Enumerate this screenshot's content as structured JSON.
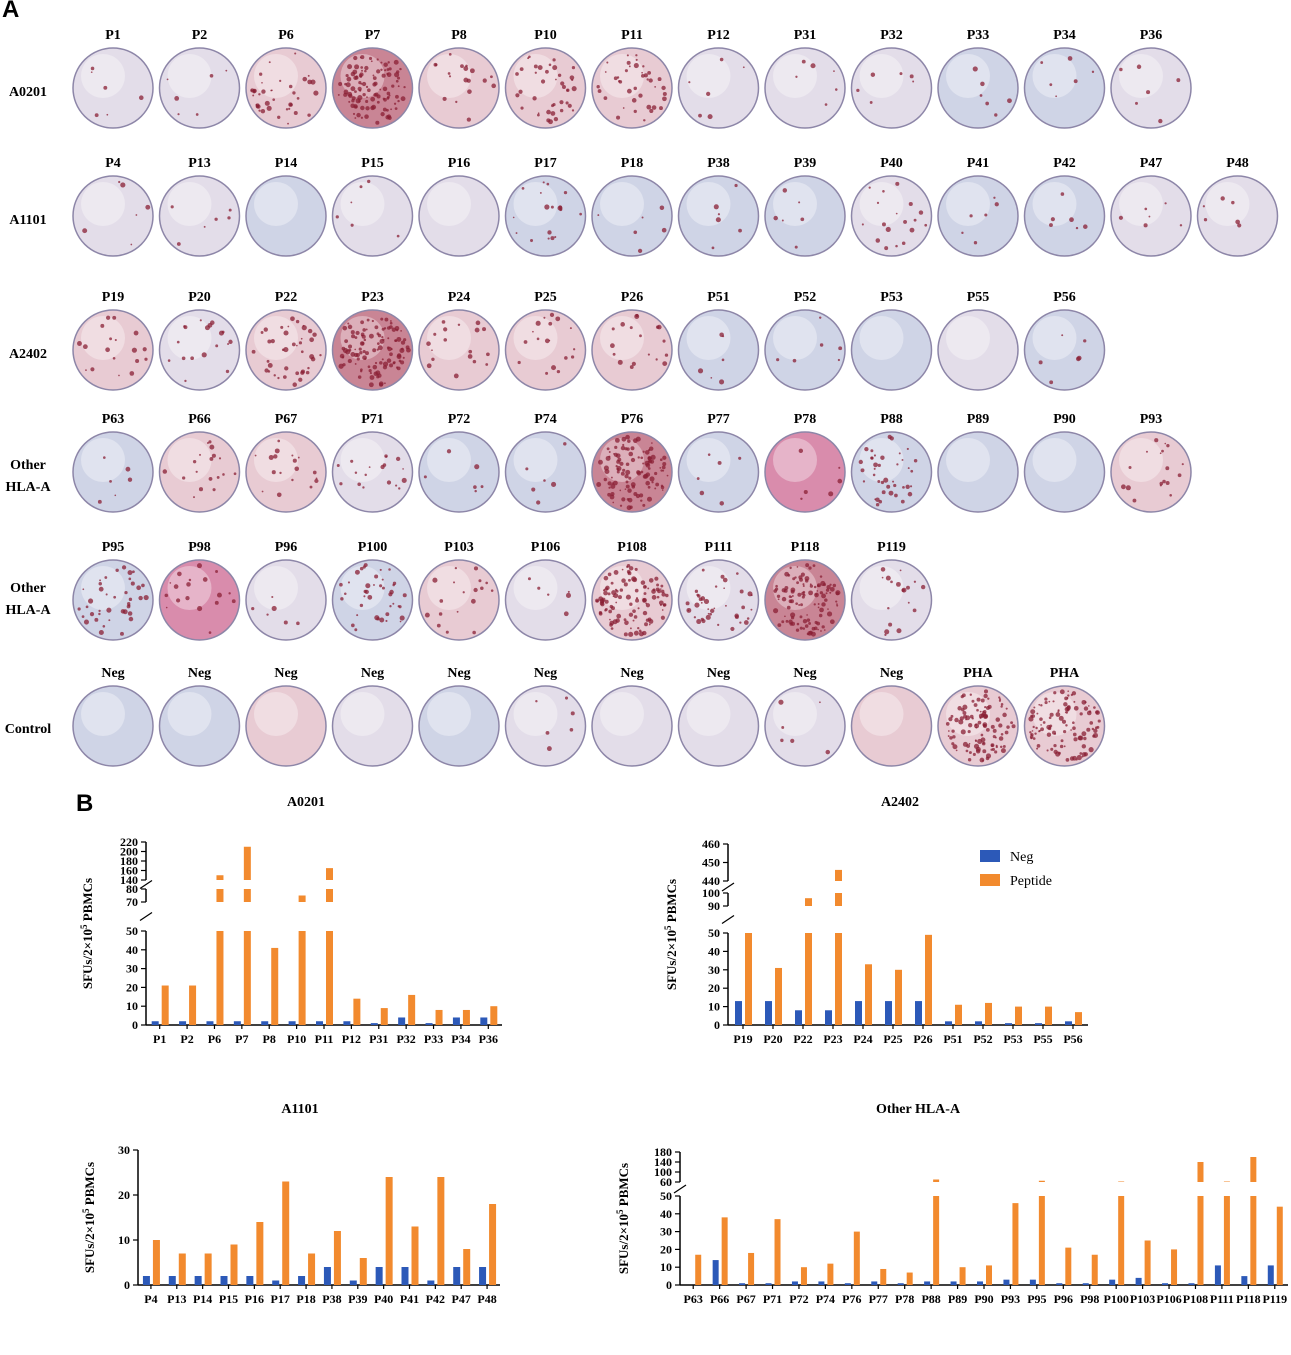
{
  "panel_a": {
    "letter": "A",
    "rows": [
      {
        "label_lines": [
          "A0201"
        ],
        "wells": [
          {
            "label": "P1",
            "tone": "pale",
            "spots": "few"
          },
          {
            "label": "P2",
            "tone": "pale",
            "spots": "few"
          },
          {
            "label": "P6",
            "tone": "pink",
            "spots": "many"
          },
          {
            "label": "P7",
            "tone": "red",
            "spots": "dense"
          },
          {
            "label": "P8",
            "tone": "pink",
            "spots": "some"
          },
          {
            "label": "P10",
            "tone": "pink",
            "spots": "many"
          },
          {
            "label": "P11",
            "tone": "pink",
            "spots": "many"
          },
          {
            "label": "P12",
            "tone": "pale",
            "spots": "few"
          },
          {
            "label": "P31",
            "tone": "pale",
            "spots": "few"
          },
          {
            "label": "P32",
            "tone": "pale",
            "spots": "few"
          },
          {
            "label": "P33",
            "tone": "blue",
            "spots": "few"
          },
          {
            "label": "P34",
            "tone": "blue",
            "spots": "few"
          },
          {
            "label": "P36",
            "tone": "pale",
            "spots": "few"
          }
        ]
      },
      {
        "label_lines": [
          "A1101"
        ],
        "wells": [
          {
            "label": "P4",
            "tone": "pale",
            "spots": "few"
          },
          {
            "label": "P13",
            "tone": "pale",
            "spots": "few"
          },
          {
            "label": "P14",
            "tone": "blue",
            "spots": "none"
          },
          {
            "label": "P15",
            "tone": "pale",
            "spots": "few"
          },
          {
            "label": "P16",
            "tone": "pale",
            "spots": "none"
          },
          {
            "label": "P17",
            "tone": "blue",
            "spots": "some"
          },
          {
            "label": "P18",
            "tone": "blue",
            "spots": "few"
          },
          {
            "label": "P38",
            "tone": "blue",
            "spots": "few"
          },
          {
            "label": "P39",
            "tone": "blue",
            "spots": "few"
          },
          {
            "label": "P40",
            "tone": "pale",
            "spots": "some"
          },
          {
            "label": "P41",
            "tone": "blue",
            "spots": "few"
          },
          {
            "label": "P42",
            "tone": "blue",
            "spots": "few"
          },
          {
            "label": "P47",
            "tone": "pale",
            "spots": "few"
          },
          {
            "label": "P48",
            "tone": "pale",
            "spots": "few"
          }
        ]
      },
      {
        "label_lines": [
          "A2402"
        ],
        "wells": [
          {
            "label": "P19",
            "tone": "pink",
            "spots": "some"
          },
          {
            "label": "P20",
            "tone": "pale",
            "spots": "some"
          },
          {
            "label": "P22",
            "tone": "pink",
            "spots": "many"
          },
          {
            "label": "P23",
            "tone": "red",
            "spots": "dense"
          },
          {
            "label": "P24",
            "tone": "pink",
            "spots": "some"
          },
          {
            "label": "P25",
            "tone": "pink",
            "spots": "some"
          },
          {
            "label": "P26",
            "tone": "pink",
            "spots": "some"
          },
          {
            "label": "P51",
            "tone": "blue",
            "spots": "few"
          },
          {
            "label": "P52",
            "tone": "blue",
            "spots": "few"
          },
          {
            "label": "P53",
            "tone": "blue",
            "spots": "none"
          },
          {
            "label": "P55",
            "tone": "pale",
            "spots": "none"
          },
          {
            "label": "P56",
            "tone": "blue",
            "spots": "few"
          }
        ]
      },
      {
        "label_lines": [
          "Other",
          "HLA-A"
        ],
        "wells": [
          {
            "label": "P63",
            "tone": "blue",
            "spots": "few"
          },
          {
            "label": "P66",
            "tone": "pink",
            "spots": "some"
          },
          {
            "label": "P67",
            "tone": "pink",
            "spots": "some"
          },
          {
            "label": "P71",
            "tone": "pale",
            "spots": "some"
          },
          {
            "label": "P72",
            "tone": "blue",
            "spots": "few"
          },
          {
            "label": "P74",
            "tone": "blue",
            "spots": "few"
          },
          {
            "label": "P76",
            "tone": "red",
            "spots": "dense"
          },
          {
            "label": "P77",
            "tone": "blue",
            "spots": "few"
          },
          {
            "label": "P78",
            "tone": "magenta",
            "spots": "few"
          },
          {
            "label": "P88",
            "tone": "blue",
            "spots": "many"
          },
          {
            "label": "P89",
            "tone": "blue",
            "spots": "none"
          },
          {
            "label": "P90",
            "tone": "blue",
            "spots": "none"
          },
          {
            "label": "P93",
            "tone": "pink",
            "spots": "some"
          }
        ]
      },
      {
        "label_lines": [
          "Other",
          "HLA-A"
        ],
        "wells": [
          {
            "label": "P95",
            "tone": "blue",
            "spots": "many"
          },
          {
            "label": "P98",
            "tone": "magenta",
            "spots": "some"
          },
          {
            "label": "P96",
            "tone": "pale",
            "spots": "few"
          },
          {
            "label": "P100",
            "tone": "blue",
            "spots": "many"
          },
          {
            "label": "P103",
            "tone": "pink",
            "spots": "some"
          },
          {
            "label": "P106",
            "tone": "pale",
            "spots": "few"
          },
          {
            "label": "P108",
            "tone": "pink",
            "spots": "dense"
          },
          {
            "label": "P111",
            "tone": "pale",
            "spots": "many"
          },
          {
            "label": "P118",
            "tone": "red",
            "spots": "dense"
          },
          {
            "label": "P119",
            "tone": "pale",
            "spots": "some"
          }
        ]
      },
      {
        "label_lines": [
          "Control"
        ],
        "wells": [
          {
            "label": "Neg",
            "tone": "blue",
            "spots": "none"
          },
          {
            "label": "Neg",
            "tone": "blue",
            "spots": "none"
          },
          {
            "label": "Neg",
            "tone": "pink",
            "spots": "none"
          },
          {
            "label": "Neg",
            "tone": "pale",
            "spots": "none"
          },
          {
            "label": "Neg",
            "tone": "blue",
            "spots": "none"
          },
          {
            "label": "Neg",
            "tone": "pale",
            "spots": "few"
          },
          {
            "label": "Neg",
            "tone": "pale",
            "spots": "none"
          },
          {
            "label": "Neg",
            "tone": "pale",
            "spots": "none"
          },
          {
            "label": "Neg",
            "tone": "pale",
            "spots": "few"
          },
          {
            "label": "Neg",
            "tone": "pink",
            "spots": "none"
          },
          {
            "label": "PHA",
            "tone": "pink",
            "spots": "dense"
          },
          {
            "label": "PHA",
            "tone": "pink",
            "spots": "dense"
          }
        ]
      }
    ]
  },
  "panel_b": {
    "letter": "B"
  },
  "colors": {
    "neg": "#2c59b8",
    "peptide": "#f28a2e",
    "well_pale": "#e3dde9",
    "well_blue": "#cfd4e6",
    "well_pink": "#e8cbd3",
    "well_red": "#c98595",
    "well_magenta": "#d98cac",
    "spot": "#8a1f34"
  },
  "legend": {
    "neg_label": "Neg",
    "peptide_label": "Peptide"
  },
  "chart_data": [
    {
      "type": "bar",
      "title": "A0201",
      "ylabel": "SFUs/2×10^5 PBMCs",
      "categories": [
        "P1",
        "P2",
        "P6",
        "P7",
        "P8",
        "P10",
        "P11",
        "P12",
        "P31",
        "P32",
        "P33",
        "P34",
        "P36"
      ],
      "series": [
        {
          "name": "Neg",
          "values": [
            2,
            2,
            2,
            2,
            2,
            2,
            2,
            2,
            1,
            4,
            1,
            4,
            4
          ]
        },
        {
          "name": "Peptide",
          "values": [
            21,
            21,
            150,
            210,
            41,
            75,
            165,
            14,
            9,
            16,
            8,
            8,
            10
          ]
        }
      ],
      "axis_segments": [
        {
          "range": [
            0,
            50
          ],
          "ticks": [
            0,
            10,
            20,
            30,
            40,
            50
          ]
        },
        {
          "range": [
            70,
            80
          ],
          "ticks": [
            70,
            80
          ]
        },
        {
          "range": [
            140,
            220
          ],
          "ticks": [
            140,
            160,
            180,
            200,
            220
          ]
        }
      ]
    },
    {
      "type": "bar",
      "title": "A2402",
      "ylabel": "SFUs/2×10^5 PBMCs",
      "categories": [
        "P19",
        "P20",
        "P22",
        "P23",
        "P24",
        "P25",
        "P26",
        "P51",
        "P52",
        "P53",
        "P55",
        "P56"
      ],
      "series": [
        {
          "name": "Neg",
          "values": [
            13,
            13,
            8,
            8,
            13,
            13,
            13,
            2,
            2,
            1,
            1,
            2
          ]
        },
        {
          "name": "Peptide",
          "values": [
            55,
            31,
            96,
            446,
            33,
            30,
            49,
            11,
            12,
            10,
            10,
            7
          ]
        }
      ],
      "axis_segments": [
        {
          "range": [
            0,
            50
          ],
          "ticks": [
            0,
            10,
            20,
            30,
            40,
            50
          ]
        },
        {
          "range": [
            90,
            100
          ],
          "ticks": [
            90,
            100
          ]
        },
        {
          "range": [
            440,
            460
          ],
          "ticks": [
            440,
            450,
            460
          ]
        }
      ],
      "legend_position": "top-right"
    },
    {
      "type": "bar",
      "title": "A1101",
      "ylabel": "SFUs/2×10^5 PBMCs",
      "categories": [
        "P4",
        "P13",
        "P14",
        "P15",
        "P16",
        "P17",
        "P18",
        "P38",
        "P39",
        "P40",
        "P41",
        "P42",
        "P47",
        "P48"
      ],
      "series": [
        {
          "name": "Neg",
          "values": [
            2,
            2,
            2,
            2,
            2,
            1,
            2,
            4,
            1,
            4,
            4,
            1,
            4,
            4
          ]
        },
        {
          "name": "Peptide",
          "values": [
            10,
            7,
            7,
            9,
            14,
            23,
            7,
            12,
            6,
            24,
            13,
            24,
            8,
            18
          ]
        }
      ],
      "axis_segments": [
        {
          "range": [
            0,
            30
          ],
          "ticks": [
            0,
            10,
            20,
            30
          ]
        }
      ]
    },
    {
      "type": "bar",
      "title": "Other HLA-A",
      "ylabel": "SFUs/2×10^5 PBMCs",
      "categories": [
        "P63",
        "P66",
        "P67",
        "P71",
        "P72",
        "P74",
        "P76",
        "P77",
        "P78",
        "P88",
        "P89",
        "P90",
        "P93",
        "P95",
        "P96",
        "P98",
        "P100",
        "P103",
        "P106",
        "P108",
        "P111",
        "P118",
        "P119"
      ],
      "series": [
        {
          "name": "Neg",
          "values": [
            0,
            14,
            1,
            1,
            2,
            2,
            1,
            2,
            1,
            2,
            2,
            2,
            3,
            3,
            1,
            1,
            3,
            4,
            1,
            1,
            11,
            5,
            11
          ]
        },
        {
          "name": "Peptide",
          "values": [
            17,
            38,
            18,
            37,
            10,
            12,
            30,
            9,
            7,
            70,
            10,
            11,
            46,
            65,
            21,
            17,
            62,
            25,
            20,
            140,
            62,
            160,
            44
          ]
        }
      ],
      "axis_segments": [
        {
          "range": [
            0,
            50
          ],
          "ticks": [
            0,
            10,
            20,
            30,
            40,
            50
          ]
        },
        {
          "range": [
            60,
            180
          ],
          "ticks": [
            60,
            100,
            140,
            180
          ]
        }
      ]
    }
  ]
}
